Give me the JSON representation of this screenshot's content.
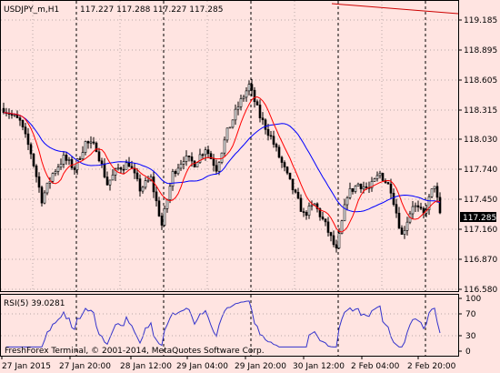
{
  "main_chart": {
    "title": "USDJPY_m,H1",
    "ohlc_readout": "117.227 117.288 117.227 117.285",
    "y_ticks": [
      "119.185",
      "118.895",
      "118.605",
      "118.315",
      "118.030",
      "117.740",
      "117.450",
      "117.160",
      "116.870",
      "116.580"
    ],
    "current_price": "117.285",
    "trendline_color": "#cc0000",
    "fast_ma_color": "#ff0000",
    "slow_ma_color": "#0000ff",
    "candle_color": "#000000",
    "background_color": "#ffe4e1"
  },
  "rsi_panel": {
    "label": "RSI(5) 39.0281",
    "y_ticks": [
      "100",
      "70",
      "30",
      "0"
    ],
    "line_color": "#3333cc"
  },
  "x_axis": {
    "labels": [
      "27 Jan 2015",
      "27 Jan 20:00",
      "28 Jan 12:00",
      "29 Jan 04:00",
      "29 Jan 20:00",
      "30 Jan 12:00",
      "2 Feb 04:00",
      "2 Feb 20:00"
    ]
  },
  "watermark": "FreshForex Terminal, © 2001-2014, MetaQuotes Software Corp."
}
